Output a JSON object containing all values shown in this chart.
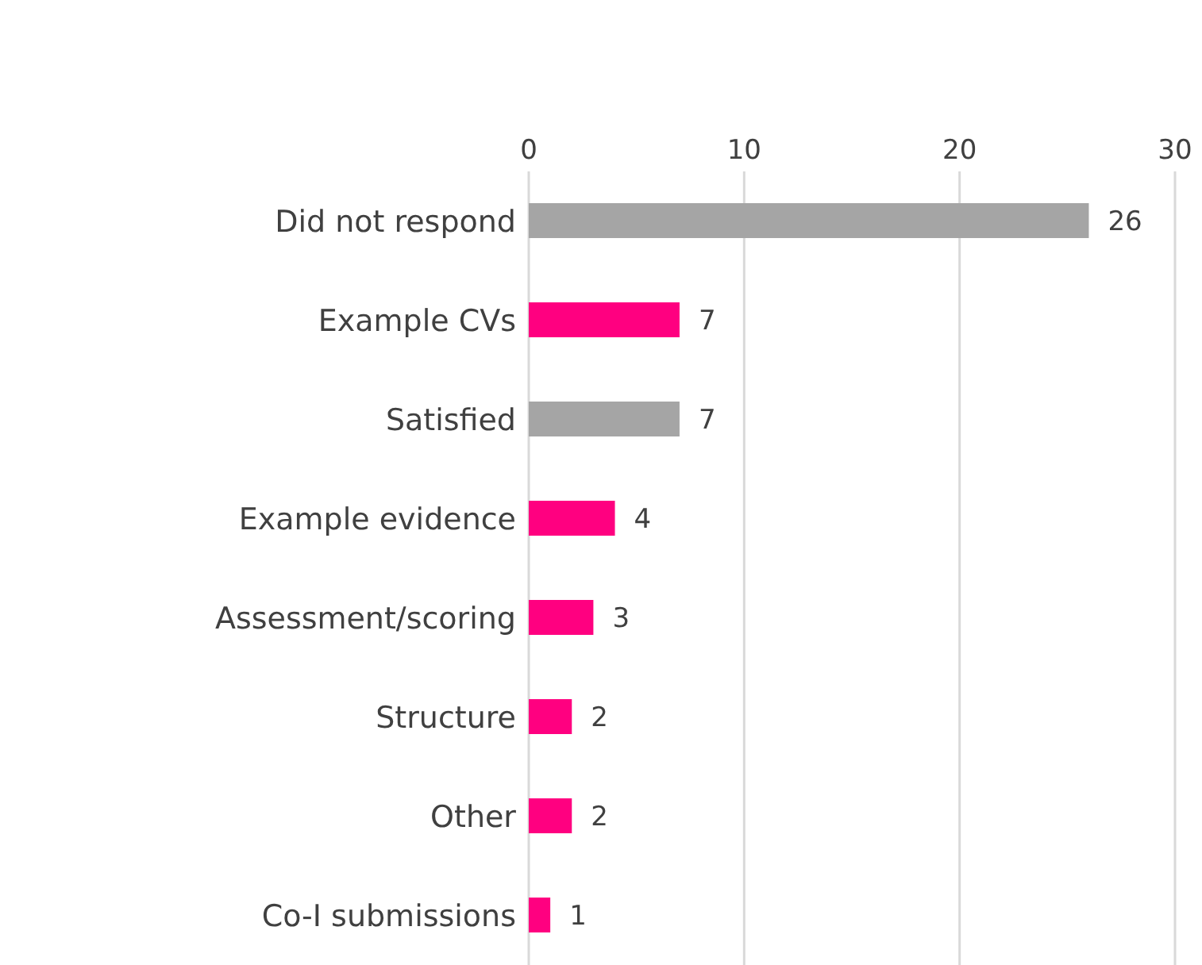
{
  "chart_data": {
    "type": "bar",
    "orientation": "horizontal",
    "categories": [
      "Did not respond",
      "Example CVs",
      "Satisfied",
      "Example evidence",
      "Assessment/scoring",
      "Structure",
      "Other",
      "Co-I submissions"
    ],
    "values": [
      26,
      7,
      7,
      4,
      3,
      2,
      2,
      1
    ],
    "colors": [
      "#a5a5a5",
      "#ff0080",
      "#a5a5a5",
      "#ff0080",
      "#ff0080",
      "#ff0080",
      "#ff0080",
      "#ff0080"
    ],
    "xlim": [
      0,
      30
    ],
    "xticks": [
      0,
      10,
      20,
      30
    ],
    "grid": "x",
    "data_labels": true
  }
}
